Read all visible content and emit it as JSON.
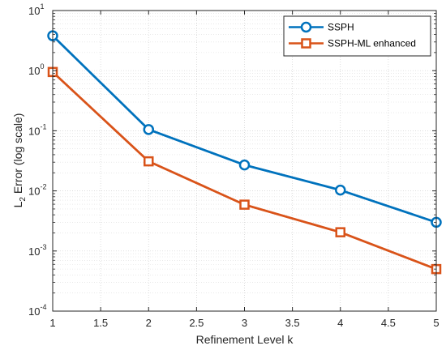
{
  "chart_data": {
    "type": "line",
    "x": [
      1,
      2,
      3,
      4,
      5
    ],
    "series": [
      {
        "name": "SSPH",
        "values": [
          3.8,
          0.105,
          0.027,
          0.0103,
          0.003
        ],
        "color": "#0072BD",
        "marker": "circle"
      },
      {
        "name": "SSPH-ML enhanced",
        "values": [
          0.95,
          0.031,
          0.0059,
          0.00205,
          0.0005
        ],
        "color": "#D95319",
        "marker": "square"
      }
    ],
    "xlabel": "Refinement Level k",
    "ylabel_main": "L",
    "ylabel_sub": "2",
    "ylabel_rest": " Error (log scale)",
    "xlim": [
      1,
      5
    ],
    "ylim": [
      0.0001,
      10
    ],
    "yscale": "log",
    "xticks": [
      "1",
      "1.5",
      "2",
      "2.5",
      "3",
      "3.5",
      "4",
      "4.5",
      "5"
    ],
    "yticks": [
      {
        "base": "10",
        "exp": "-4"
      },
      {
        "base": "10",
        "exp": "-3"
      },
      {
        "base": "10",
        "exp": "-2"
      },
      {
        "base": "10",
        "exp": "-1"
      },
      {
        "base": "10",
        "exp": "0"
      },
      {
        "base": "10",
        "exp": "1"
      }
    ],
    "grid": true,
    "minor_grid": true,
    "legend_position": "top-right"
  }
}
